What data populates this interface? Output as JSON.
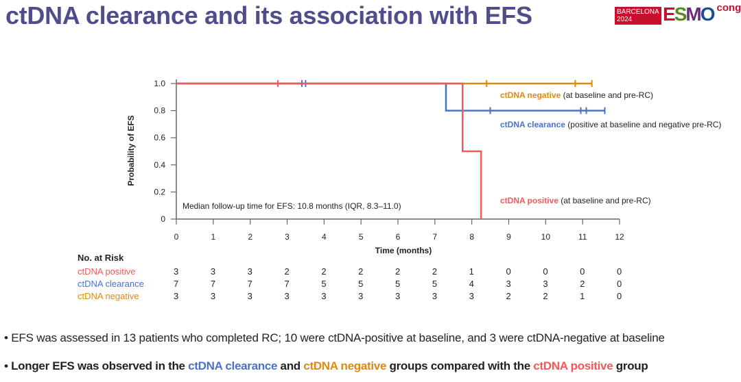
{
  "slide": {
    "title": "ctDNA clearance and its association with EFS",
    "logo": {
      "city": "BARCELONA",
      "year": "2024",
      "brand": "ESMO",
      "suffix": "congress"
    },
    "bullets": [
      {
        "text": "EFS was assessed in 13 patients who completed RC; 10 were ctDNA-positive at baseline, and 3 were ctDNA-negative at baseline"
      },
      {
        "parts": [
          "Longer EFS was observed in the ",
          "ctDNA clearance",
          " and ",
          "ctDNA negative",
          " groups compared with the ",
          "ctDNA positive",
          " group"
        ]
      }
    ]
  },
  "chart_data": {
    "type": "line",
    "subtype": "kaplan-meier",
    "xlabel": "Time (months)",
    "ylabel": "Probability of  EFS",
    "xlim": [
      0,
      12
    ],
    "ylim": [
      0,
      1
    ],
    "xticks": [
      "0",
      "1",
      "2",
      "3",
      "4",
      "5",
      "6",
      "7",
      "8",
      "9",
      "10",
      "11",
      "12"
    ],
    "yticks": [
      {
        "v": 0,
        "label": "0"
      },
      {
        "v": 0.2,
        "label": "0.2"
      },
      {
        "v": 0.4,
        "label": "0.4"
      },
      {
        "v": 0.6,
        "label": "0.6"
      },
      {
        "v": 0.8,
        "label": "0.8"
      },
      {
        "v": 1,
        "label": "1.0"
      }
    ],
    "annotation": "Median follow-up time for EFS: 10.8 months (IQR, 8.3–11.0)",
    "series": [
      {
        "name": "ctDNA negative",
        "desc": " (at baseline and pre-RC)",
        "color": "#e08a0c",
        "steps": [
          [
            0,
            1
          ],
          [
            11.25,
            1
          ]
        ],
        "censors": [
          [
            8.4,
            1
          ],
          [
            10.8,
            1
          ],
          [
            11.25,
            1
          ]
        ],
        "risk": [
          "3",
          "3",
          "3",
          "3",
          "3",
          "3",
          "3",
          "3",
          "3",
          "2",
          "2",
          "1",
          "0"
        ]
      },
      {
        "name": "ctDNA clearance",
        "desc": " (positive at baseline and negative pre-RC)",
        "color": "#4a72c8",
        "steps": [
          [
            0,
            1
          ],
          [
            7.3,
            1
          ],
          [
            7.3,
            0.8
          ],
          [
            11.6,
            0.8
          ]
        ],
        "censors": [
          [
            3.4,
            1
          ],
          [
            3.5,
            1
          ],
          [
            8.5,
            0.8
          ],
          [
            10.95,
            0.8
          ],
          [
            11.1,
            0.8
          ],
          [
            11.6,
            0.8
          ]
        ],
        "risk": [
          "7",
          "7",
          "7",
          "7",
          "5",
          "5",
          "5",
          "5",
          "4",
          "3",
          "3",
          "2",
          "0"
        ]
      },
      {
        "name": "ctDNA positive",
        "desc": " (at baseline and pre-RC)",
        "color": "#f05a5a",
        "steps": [
          [
            0,
            1
          ],
          [
            7.75,
            1
          ],
          [
            7.75,
            0.5
          ],
          [
            8.25,
            0.5
          ],
          [
            8.25,
            0
          ]
        ],
        "censors": [
          [
            2.75,
            1
          ]
        ],
        "risk": [
          "3",
          "3",
          "3",
          "2",
          "2",
          "2",
          "2",
          "2",
          "1",
          "0",
          "0",
          "0",
          "0"
        ]
      }
    ],
    "risk_table": {
      "title": "No. at Risk",
      "order": [
        2,
        1,
        0
      ]
    }
  }
}
